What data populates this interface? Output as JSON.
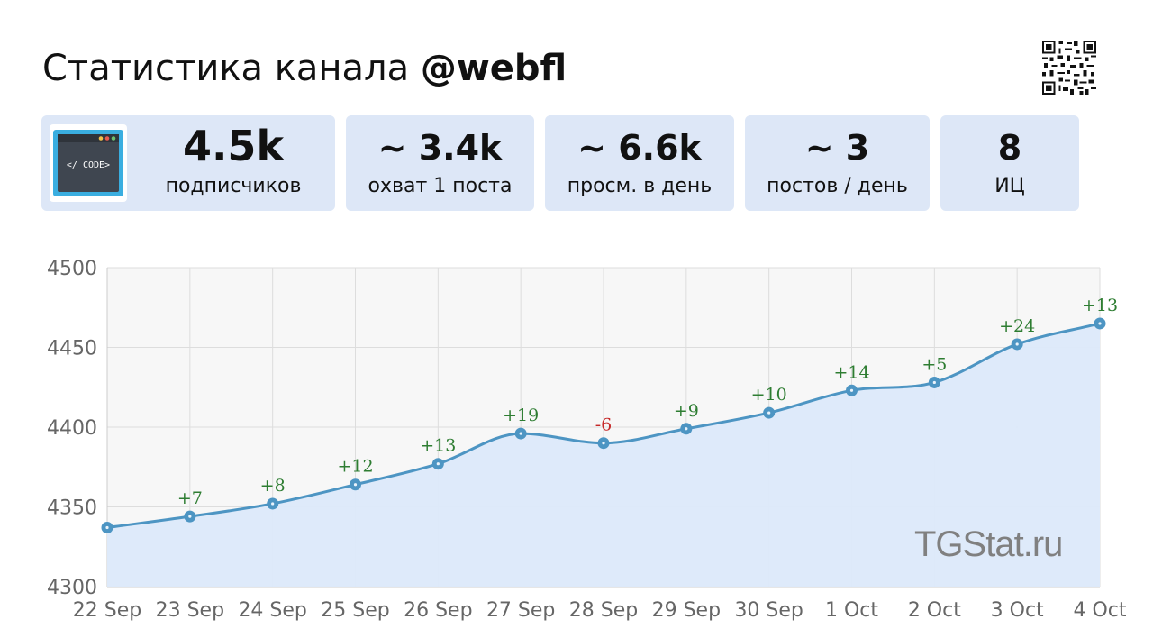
{
  "header": {
    "title_prefix": "Статистика канала ",
    "title_handle": "@webfl",
    "qr_icon": "qr-code-icon"
  },
  "cards": [
    {
      "value": "4.5k",
      "label": "подписчиков"
    },
    {
      "value": "~ 3.4k",
      "label": "охват 1 поста"
    },
    {
      "value": "~ 6.6k",
      "label": "просм. в день"
    },
    {
      "value": "~ 3",
      "label": "постов / день"
    },
    {
      "value": "8",
      "label": "ИЦ"
    }
  ],
  "avatar": {
    "text": "</ CODE>",
    "icon": "code-window-icon"
  },
  "watermark": "TGStat.ru",
  "colors": {
    "card_bg": "#dde7f7",
    "line": "#4d95c3",
    "area": "#dce9fa",
    "delta_positive": "#2e7d32",
    "delta_negative": "#c62828"
  },
  "chart_data": {
    "type": "area",
    "categories": [
      "22 Sep",
      "23 Sep",
      "24 Sep",
      "25 Sep",
      "26 Sep",
      "27 Sep",
      "28 Sep",
      "29 Sep",
      "30 Sep",
      "1 Oct",
      "2 Oct",
      "3 Oct",
      "4 Oct"
    ],
    "values": [
      4337,
      4344,
      4352,
      4364,
      4377,
      4396,
      4390,
      4399,
      4409,
      4423,
      4428,
      4452,
      4465
    ],
    "point_labels": [
      "",
      "+7",
      "+8",
      "+12",
      "+13",
      "+19",
      "-6",
      "+9",
      "+10",
      "+14",
      "+5",
      "+24",
      "+13"
    ],
    "ylim": [
      4300,
      4500
    ],
    "yticks": [
      4300,
      4350,
      4400,
      4450,
      4500
    ],
    "grid": true,
    "title": "",
    "xlabel": "",
    "ylabel": ""
  }
}
